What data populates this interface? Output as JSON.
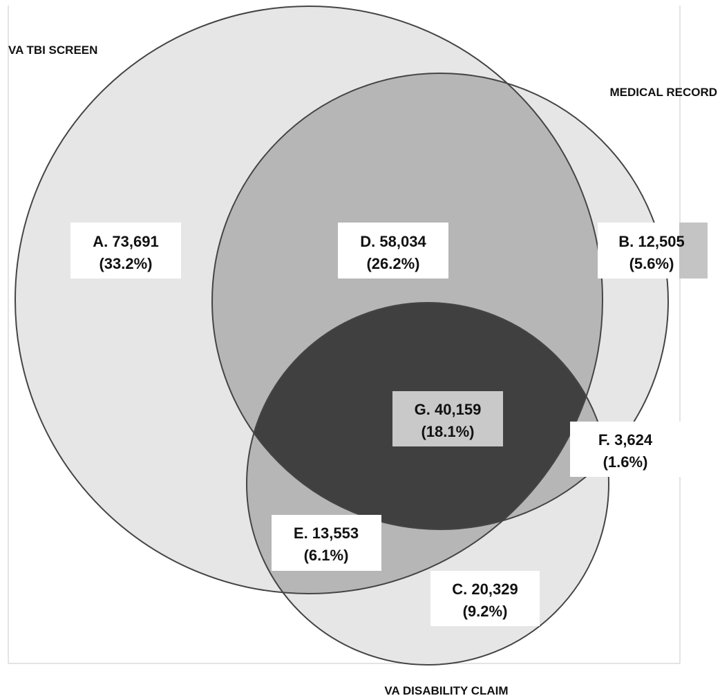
{
  "sets": [
    {
      "id": "va_tbi_screen",
      "label": "VA TBI SCREEN"
    },
    {
      "id": "medical_record",
      "label": "MEDICAL RECORD"
    },
    {
      "id": "va_disability_claim",
      "label": "VA DISABILITY CLAIM"
    }
  ],
  "regions": [
    {
      "id": "A",
      "line1": "A. 73,691",
      "line2": "(33.2%)",
      "count": 73691,
      "percent": 33.2,
      "sets": [
        "va_tbi_screen"
      ]
    },
    {
      "id": "B",
      "line1": "B. 12,505",
      "line2": "(5.6%)",
      "count": 12505,
      "percent": 5.6,
      "sets": [
        "medical_record"
      ]
    },
    {
      "id": "C",
      "line1": "C. 20,329",
      "line2": "(9.2%)",
      "count": 20329,
      "percent": 9.2,
      "sets": [
        "va_disability_claim"
      ]
    },
    {
      "id": "D",
      "line1": "D. 58,034",
      "line2": "(26.2%)",
      "count": 58034,
      "percent": 26.2,
      "sets": [
        "va_tbi_screen",
        "medical_record"
      ]
    },
    {
      "id": "E",
      "line1": "E. 13,553",
      "line2": "(6.1%)",
      "count": 13553,
      "percent": 6.1,
      "sets": [
        "va_tbi_screen",
        "va_disability_claim"
      ]
    },
    {
      "id": "F",
      "line1": "F. 3,624",
      "line2": "(1.6%)",
      "count": 3624,
      "percent": 1.6,
      "sets": [
        "medical_record",
        "va_disability_claim"
      ]
    },
    {
      "id": "G",
      "line1": "G. 40,159",
      "line2": "(18.1%)",
      "count": 40159,
      "percent": 18.1,
      "sets": [
        "va_tbi_screen",
        "medical_record",
        "va_disability_claim"
      ]
    }
  ],
  "colors": {
    "single_overlap": "#e6e6e6",
    "double_overlap": "#b6b6b6",
    "triple_overlap": "#404040",
    "stroke": "#444444",
    "label_box": "#ffffff"
  }
}
